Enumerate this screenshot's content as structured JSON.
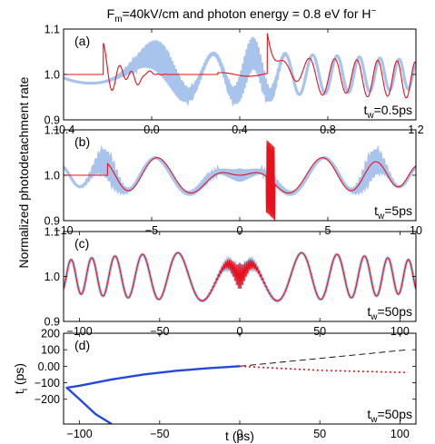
{
  "figure": {
    "title_parts": [
      "F",
      "m",
      "=40kV/cm and photon energy = 0.8 eV for H",
      "−"
    ],
    "ylabel": "Normalized photodetachment rate",
    "colors": {
      "background_series": "#a9c4ec",
      "main_series": "#e8101a",
      "blue_curve": "#2448de",
      "dashed": "#000000"
    }
  },
  "chart_data": [
    {
      "type": "line",
      "panel": "(a)",
      "tw_label": [
        "t",
        "w",
        "=0.5ps"
      ],
      "xlim": [
        -0.4,
        1.2
      ],
      "ylim": [
        0.9,
        1.1
      ],
      "xticks": [
        -0.4,
        0,
        0.4,
        0.8,
        1.2
      ],
      "xtick_labels": [
        "−0.4",
        "0.0",
        "0.4",
        "0.8",
        "1.2"
      ],
      "yticks": [
        0.9,
        1.0,
        1.1
      ],
      "ytick_labels": [
        "0.9",
        "1.0",
        "1.1"
      ],
      "series": [
        {
          "role": "background",
          "x": [
            -0.4,
            -0.3,
            -0.2,
            -0.1,
            0,
            0.1,
            0.2,
            0.3,
            0.4,
            0.5,
            0.6,
            0.7,
            0.8,
            0.9,
            1.0,
            1.1,
            1.2
          ],
          "y": [
            0.978,
            0.961,
            1.046,
            0.957,
            0.995,
            1.036,
            0.963,
            1.047,
            0.966,
            1.02,
            1.033,
            0.958,
            1.047,
            0.96,
            1.012,
            0.977,
            0.996
          ],
          "estimated": true
        },
        {
          "role": "main",
          "x": [
            -0.4,
            -0.22,
            -0.21,
            -0.15,
            -0.1,
            0,
            0.1,
            0.2,
            0.3,
            0.4,
            0.52,
            0.53,
            0.6,
            0.7,
            0.8,
            0.9,
            1.0,
            1.1,
            1.2
          ],
          "y": [
            1.0,
            1.0,
            1.07,
            1.03,
            0.985,
            1.0,
            1.005,
            1.002,
            0.997,
            1.002,
            1.0,
            1.1,
            1.05,
            0.97,
            1.04,
            0.975,
            1.02,
            0.99,
            0.975
          ],
          "estimated": true
        }
      ]
    },
    {
      "type": "line",
      "panel": "(b)",
      "tw_label": [
        "t",
        "w",
        "=5ps"
      ],
      "xlim": [
        -10,
        10
      ],
      "ylim": [
        0.9,
        1.1
      ],
      "xticks": [
        -10,
        -5,
        0,
        5,
        10
      ],
      "xtick_labels": [
        "−10",
        "−5",
        "0",
        "5",
        "10"
      ],
      "yticks": [
        0.9,
        1.0,
        1.1
      ],
      "ytick_labels": [
        "0.9",
        "1.0",
        "1.1"
      ],
      "series": [
        {
          "role": "background",
          "x": [
            -10,
            -8,
            -6,
            -4.5,
            -3,
            -2,
            0,
            2,
            3,
            4.5,
            6,
            8,
            10
          ],
          "y": [
            1.0,
            0.98,
            1.04,
            0.94,
            1.045,
            0.96,
            1.0,
            0.96,
            1.045,
            0.94,
            1.04,
            0.98,
            1.0
          ],
          "estimated": true
        },
        {
          "role": "main",
          "x": [
            -10,
            -7.5,
            -6,
            -4.5,
            -3,
            -2,
            0,
            1.5,
            2,
            3,
            4.5,
            6,
            8,
            10
          ],
          "y": [
            1.0,
            1.0,
            1.04,
            0.94,
            1.045,
            0.96,
            1.0,
            1.0,
            0.92,
            1.045,
            0.94,
            1.04,
            0.98,
            1.0
          ],
          "estimated": true
        }
      ]
    },
    {
      "type": "line",
      "panel": "(c)",
      "tw_label": [
        "t",
        "w",
        "=50ps"
      ],
      "xlim": [
        -110,
        110
      ],
      "ylim": [
        0.9,
        1.1
      ],
      "xticks": [
        -100,
        -50,
        0,
        50,
        100
      ],
      "xtick_labels": [
        "−100",
        "−50",
        "0",
        "50",
        "100"
      ],
      "yticks": [
        0.9,
        1.0,
        1.1
      ],
      "ytick_labels": [
        "0.9",
        "1.0",
        "1.1"
      ],
      "series": [
        {
          "role": "background",
          "x": [
            -110,
            -80,
            -50,
            -30,
            -20,
            0,
            20,
            30,
            50,
            80,
            110
          ],
          "y": [
            1.0,
            0.98,
            1.04,
            0.945,
            1.055,
            1.0,
            1.055,
            0.945,
            1.04,
            0.98,
            1.0
          ],
          "estimated": true
        },
        {
          "role": "main",
          "x": [
            -110,
            -80,
            -50,
            -30,
            -20,
            0,
            20,
            30,
            50,
            80,
            110
          ],
          "y": [
            1.0,
            0.98,
            1.04,
            0.945,
            1.055,
            1.0,
            1.055,
            0.945,
            1.04,
            0.98,
            1.0
          ],
          "estimated": true
        }
      ]
    },
    {
      "type": "line",
      "panel": "(d)",
      "tw_label": [
        "t",
        "w",
        "=50ps"
      ],
      "xlabel": "t (ps)",
      "ylabel_parts": [
        "t",
        "i",
        " (ps)"
      ],
      "xlim": [
        -110,
        110
      ],
      "ylim": [
        -350,
        200
      ],
      "xticks": [
        -100,
        -50,
        0,
        50,
        100
      ],
      "xtick_labels": [
        "−100",
        "−50",
        "0",
        "50",
        "100"
      ],
      "yticks": [
        -200,
        -100,
        0,
        100,
        200
      ],
      "ytick_labels": [
        "−200",
        "−100",
        "0.00",
        "100",
        "200"
      ],
      "series": [
        {
          "role": "blue_trajectory",
          "x": [
            0,
            -20,
            -40,
            -60,
            -80,
            -100,
            -108,
            -100,
            -90,
            -80
          ],
          "y": [
            0,
            -12,
            -28,
            -50,
            -80,
            -118,
            -130,
            -200,
            -290,
            -350
          ],
          "estimated": true
        },
        {
          "role": "dashed_line",
          "x": [
            0,
            105
          ],
          "y": [
            0,
            100
          ],
          "estimated": true
        },
        {
          "role": "red_dotted",
          "x": [
            0,
            50,
            105
          ],
          "y": [
            0,
            -25,
            -38
          ],
          "estimated": true
        }
      ]
    }
  ]
}
